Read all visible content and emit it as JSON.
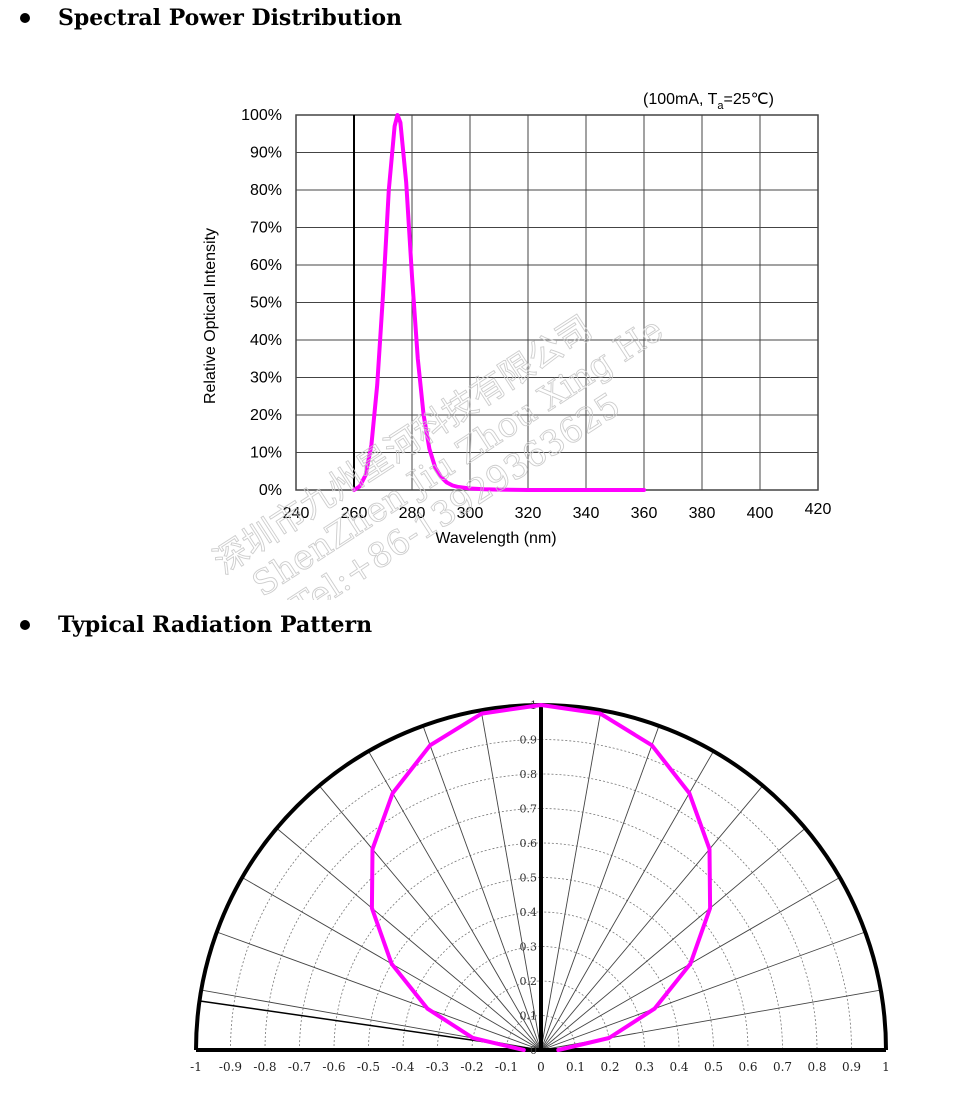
{
  "sections": {
    "spectral_title": "Spectral Power Distribution",
    "radiation_title": "Typical Radiation Pattern"
  },
  "colors": {
    "curve": "#ff00ff",
    "grid": "#444444",
    "frame": "#000000"
  },
  "watermark": {
    "line1": "深圳市九州星河科技有限公司",
    "line2": "ShenZhen Jiu Zhou Xing He",
    "line3": "Tel:+86-13929363625"
  },
  "chart_data": [
    {
      "type": "line",
      "title": "",
      "annotation": {
        "prefix": "(100mA, T",
        "subscript": "a",
        "suffix": "=25℃)"
      },
      "xlabel": "Wavelength (nm)",
      "ylabel": "Relative Optical Intensity",
      "xlim": [
        240,
        420
      ],
      "ylim": [
        0,
        100
      ],
      "x_ticks": [
        "240",
        "260",
        "280",
        "300",
        "320",
        "340",
        "360",
        "380",
        "400",
        "420"
      ],
      "y_ticks": [
        "0%",
        "10%",
        "20%",
        "30%",
        "40%",
        "50%",
        "60%",
        "70%",
        "80%",
        "90%",
        "100%"
      ],
      "grid": true,
      "series": [
        {
          "x": [
            260,
            262,
            264,
            266,
            268,
            270,
            272,
            274,
            275,
            276,
            278,
            280,
            282,
            284,
            286,
            288,
            290,
            292,
            294,
            296,
            300,
            305,
            310,
            320,
            340,
            360
          ],
          "y": [
            0,
            1,
            4,
            12,
            28,
            52,
            80,
            97,
            100,
            98,
            82,
            57,
            35,
            20,
            11,
            6,
            3.5,
            2,
            1.2,
            0.8,
            0.4,
            0.2,
            0.1,
            0,
            0,
            0
          ]
        }
      ]
    },
    {
      "type": "polar",
      "title": "",
      "x_ticks": [
        "-1",
        "-0.9",
        "-0.8",
        "-0.7",
        "-0.6",
        "-0.5",
        "-0.4",
        "-0.3",
        "-0.2",
        "-0.1",
        "0",
        "0.1",
        "0.2",
        "0.3",
        "0.4",
        "0.5",
        "0.6",
        "0.7",
        "0.8",
        "0.9",
        "1"
      ],
      "r_ticks": [
        "0",
        "0.1",
        "0.2",
        "0.3",
        "0.4",
        "0.5",
        "0.6",
        "0.7",
        "0.8",
        "0.9",
        "1"
      ],
      "rlim": [
        0,
        1
      ],
      "angle_range_deg": [
        -90,
        90
      ],
      "grid": true,
      "series": [
        {
          "angles_deg": [
            -90,
            -80,
            -70,
            -60,
            -50,
            -40,
            -30,
            -20,
            -10,
            0,
            10,
            20,
            30,
            40,
            50,
            60,
            70,
            80,
            90
          ],
          "r": [
            0.05,
            0.2,
            0.35,
            0.5,
            0.64,
            0.76,
            0.86,
            0.94,
            0.99,
            1.0,
            0.99,
            0.94,
            0.86,
            0.76,
            0.64,
            0.5,
            0.35,
            0.2,
            0.05
          ]
        }
      ]
    }
  ]
}
